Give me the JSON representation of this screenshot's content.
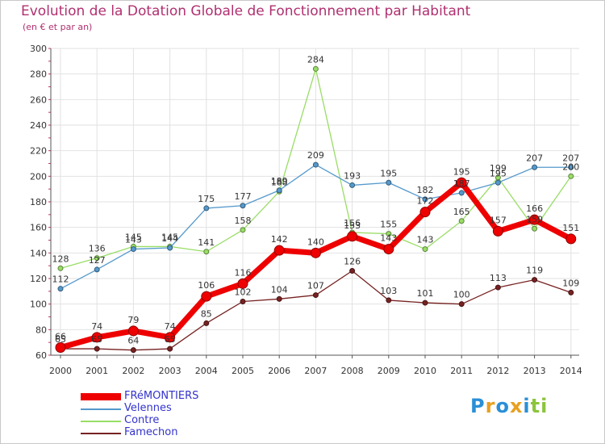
{
  "header": {
    "title": "Evolution de la Dotation Globale de Fonctionnement par Habitant",
    "subtitle": "(en € et par an)"
  },
  "logo": {
    "text": "Proxiti",
    "letters": [
      "P",
      "r",
      "o",
      "x",
      "i",
      "t",
      "i"
    ],
    "colors": [
      "#2a8fd6",
      "#e8a020",
      "#2a8fd6",
      "#e8a020",
      "#2a8fd6",
      "#8cc43c",
      "#8cc43c"
    ]
  },
  "chart_data": {
    "type": "line",
    "title": "Evolution de la Dotation Globale de Fonctionnement par Habitant",
    "subtitle": "(en € et par an)",
    "xlabel": "",
    "ylabel": "",
    "ylim": [
      60,
      300
    ],
    "yticks": [
      60,
      80,
      100,
      120,
      140,
      160,
      180,
      200,
      220,
      240,
      260,
      280,
      300
    ],
    "x": [
      "2000",
      "2001",
      "2002",
      "2003",
      "2004",
      "2005",
      "2006",
      "2007",
      "2008",
      "2009",
      "2010",
      "2011",
      "2012",
      "2013",
      "2014"
    ],
    "series": [
      {
        "name": "FRéMONTIERS",
        "color": "#ee0000",
        "values": [
          66,
          74,
          79,
          74,
          106,
          116,
          142,
          140,
          153,
          143,
          172,
          195,
          157,
          166,
          151
        ]
      },
      {
        "name": "Velennes",
        "color": "#5599cc",
        "values": [
          112,
          127,
          143,
          144,
          175,
          177,
          189,
          209,
          193,
          195,
          182,
          187,
          195,
          207,
          207
        ]
      },
      {
        "name": "Contre",
        "color": "#99dd66",
        "values": [
          128,
          136,
          145,
          145,
          141,
          158,
          188,
          284,
          156,
          155,
          143,
          165,
          199,
          159,
          200
        ]
      },
      {
        "name": "Famechon",
        "color": "#772222",
        "values": [
          65,
          65,
          64,
          65,
          85,
          102,
          104,
          107,
          126,
          103,
          101,
          100,
          113,
          119,
          109
        ]
      }
    ]
  }
}
